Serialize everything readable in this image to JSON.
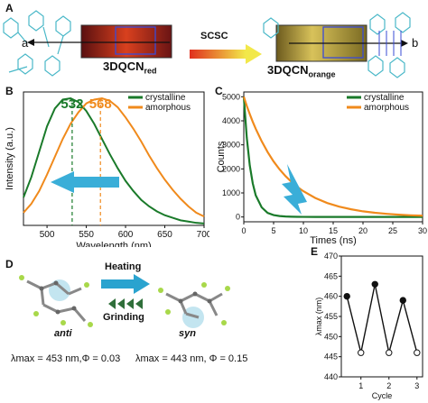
{
  "panels": {
    "A": {
      "letter": "A",
      "left_label": "3DQCN",
      "left_sub": "red",
      "right_label": "3DQCN",
      "right_sub": "orange",
      "arrow_label": "SCSC",
      "axis_a": "a",
      "axis_b": "b",
      "colors": {
        "left_crystal": "#c0321a",
        "right_crystal": "#c9a83a",
        "arrow_start": "#e0301e",
        "arrow_end": "#f2e84a",
        "molecule": "#49b8c8"
      }
    },
    "B": {
      "letter": "B"
    },
    "C": {
      "letter": "C"
    },
    "D": {
      "letter": "D",
      "heating": "Heating",
      "grinding": "Grinding",
      "anti": "anti",
      "syn": "syn",
      "left_eq_lambda": "λmax = 453 nm,Φ = 0.03",
      "right_eq_lambda": "λmax = 443 nm, Φ = 0.15",
      "colors": {
        "heating_arrow": "#2aa3cf",
        "grinding_arrow": "#2f6f3a",
        "atom_green": "#a8d84a",
        "atom_grey": "#808080",
        "highlight": "#9bd3e6"
      }
    },
    "E": {
      "letter": "E"
    }
  },
  "chart_data": [
    {
      "panel": "B",
      "type": "line",
      "xlabel": "Wavelength (nm)",
      "ylabel": "Intensity (a.u.)",
      "xlim": [
        470,
        700
      ],
      "ylim": [
        0,
        1.05
      ],
      "xticks": [
        500,
        550,
        600,
        650,
        700
      ],
      "x": [
        470,
        480,
        490,
        500,
        510,
        520,
        530,
        540,
        550,
        560,
        570,
        580,
        590,
        600,
        610,
        620,
        630,
        640,
        650,
        660,
        670,
        680,
        690,
        700
      ],
      "series": [
        {
          "name": "crystalline",
          "color": "#1a7a2a",
          "values": [
            0.22,
            0.38,
            0.58,
            0.78,
            0.92,
            0.99,
            1.0,
            0.97,
            0.9,
            0.8,
            0.68,
            0.56,
            0.45,
            0.35,
            0.27,
            0.2,
            0.15,
            0.11,
            0.08,
            0.06,
            0.04,
            0.03,
            0.02,
            0.015
          ]
        },
        {
          "name": "amorphous",
          "color": "#f08a1c",
          "values": [
            0.1,
            0.17,
            0.27,
            0.4,
            0.54,
            0.68,
            0.8,
            0.89,
            0.96,
            0.99,
            1.0,
            0.98,
            0.93,
            0.85,
            0.76,
            0.66,
            0.55,
            0.45,
            0.36,
            0.28,
            0.21,
            0.15,
            0.1,
            0.07
          ]
        }
      ],
      "peak_labels": [
        {
          "text": "532",
          "x": 532,
          "color": "#1a7a2a"
        },
        {
          "text": "568",
          "x": 568,
          "color": "#f08a1c"
        }
      ],
      "arrow_color": "#3aaed8",
      "legend": "top-right"
    },
    {
      "panel": "C",
      "type": "line",
      "xlabel": "Times (ns)",
      "ylabel": "Counts",
      "xlim": [
        0,
        30
      ],
      "ylim": [
        -200,
        5200
      ],
      "xticks": [
        0,
        5,
        10,
        15,
        20,
        25,
        30
      ],
      "yticks": [
        0,
        1000,
        2000,
        3000,
        4000,
        5000
      ],
      "x": [
        0,
        0.5,
        1,
        1.5,
        2,
        3,
        4,
        5,
        6,
        7,
        8,
        9,
        10,
        12,
        14,
        16,
        18,
        20,
        22,
        24,
        26,
        28,
        30
      ],
      "series": [
        {
          "name": "crystalline",
          "color": "#1a7a2a",
          "values": [
            5000,
            3300,
            2150,
            1400,
            900,
            400,
            170,
            80,
            40,
            20,
            10,
            5,
            3,
            2,
            1,
            1,
            1,
            1,
            1,
            1,
            1,
            1,
            1
          ]
        },
        {
          "name": "amorphous",
          "color": "#f08a1c",
          "values": [
            5000,
            4620,
            4280,
            3960,
            3670,
            3150,
            2700,
            2310,
            1980,
            1700,
            1460,
            1250,
            1070,
            790,
            580,
            430,
            320,
            235,
            175,
            130,
            95,
            70,
            52
          ]
        }
      ],
      "arrow_color": "#3aaed8",
      "legend": "top-right"
    },
    {
      "panel": "E",
      "type": "line",
      "xlabel": "Cycle",
      "ylabel": "λmax (nm)",
      "xlim": [
        0.3,
        3.2
      ],
      "ylim": [
        440,
        470
      ],
      "xticks": [
        1,
        2,
        3
      ],
      "yticks": [
        440,
        445,
        450,
        455,
        460,
        465,
        470
      ],
      "x": [
        0.5,
        1,
        1.5,
        2,
        2.5,
        3
      ],
      "series": [
        {
          "name": "",
          "color": "#111111",
          "values": [
            460,
            446,
            463,
            446,
            459,
            446
          ],
          "filled": [
            true,
            false,
            true,
            false,
            true,
            false
          ]
        }
      ]
    }
  ]
}
